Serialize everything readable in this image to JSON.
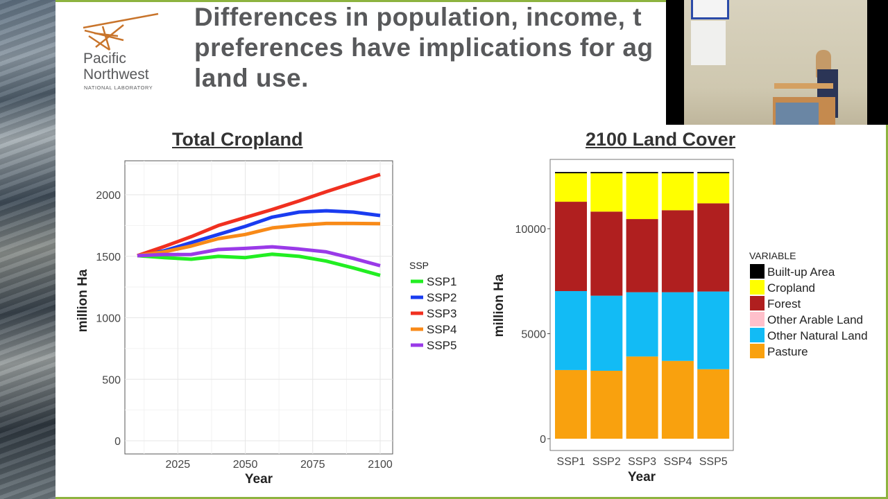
{
  "slide": {
    "title_lines": [
      "Differences in population, income, t",
      "preferences have implications for ag",
      "land use."
    ],
    "logo": {
      "line1": "Pacific",
      "line2": "Northwest",
      "line3": "NATIONAL LABORATORY"
    },
    "accent_color": "#8db33f"
  },
  "chart_data": [
    {
      "type": "line",
      "title": "Total Cropland",
      "xlabel": "Year",
      "ylabel": "million Ha",
      "xlim": [
        2010,
        2100
      ],
      "ylim": [
        0,
        2250
      ],
      "xticks": [
        2025,
        2050,
        2075,
        2100
      ],
      "yticks": [
        0,
        500,
        1000,
        1500,
        2000
      ],
      "grid": true,
      "legend_title": "SSP",
      "legend_position": "right",
      "x": [
        2010,
        2020,
        2030,
        2040,
        2050,
        2060,
        2070,
        2080,
        2090,
        2100
      ],
      "series": [
        {
          "name": "SSP1",
          "color": "#22ee22",
          "values": [
            1505,
            1489,
            1476,
            1499,
            1489,
            1517,
            1499,
            1461,
            1405,
            1345
          ]
        },
        {
          "name": "SSP2",
          "color": "#1a3cf0",
          "values": [
            1505,
            1545,
            1611,
            1677,
            1743,
            1818,
            1859,
            1870,
            1859,
            1831
          ]
        },
        {
          "name": "SSP3",
          "color": "#f03020",
          "values": [
            1505,
            1580,
            1660,
            1750,
            1815,
            1880,
            1950,
            2025,
            2095,
            2165
          ]
        },
        {
          "name": "SSP4",
          "color": "#f88a18",
          "values": [
            1505,
            1536,
            1583,
            1643,
            1677,
            1730,
            1752,
            1767,
            1767,
            1765
          ]
        },
        {
          "name": "SSP5",
          "color": "#9a3ae8",
          "values": [
            1505,
            1514,
            1515,
            1555,
            1564,
            1577,
            1559,
            1536,
            1483,
            1423
          ]
        }
      ]
    },
    {
      "type": "bar",
      "stacked": true,
      "title": "2100 Land Cover",
      "xlabel": "Year",
      "ylabel": "million Ha",
      "ylim": [
        0,
        13200
      ],
      "yticks": [
        0,
        5000,
        10000
      ],
      "categories": [
        "SSP1",
        "SSP2",
        "SSP3",
        "SSP4",
        "SSP5"
      ],
      "legend_title": "VARIABLE",
      "legend_position": "right",
      "series": [
        {
          "name": "Pasture",
          "color": "#f9a10e",
          "values": [
            3270,
            3235,
            3915,
            3705,
            3310
          ]
        },
        {
          "name": "Other Natural Land",
          "color": "#12bbf5",
          "values": [
            3760,
            3575,
            3060,
            3270,
            3700
          ]
        },
        {
          "name": "Other Arable Land",
          "color": "#ffc0cb",
          "values": [
            0,
            0,
            0,
            0,
            0
          ]
        },
        {
          "name": "Forest",
          "color": "#b01f1f",
          "values": [
            4255,
            4005,
            3485,
            3905,
            4200
          ]
        },
        {
          "name": "Cropland",
          "color": "#ffff00",
          "values": [
            1355,
            1825,
            2180,
            1760,
            1430
          ]
        },
        {
          "name": "Built-up Area",
          "color": "#000000",
          "values": [
            60,
            60,
            60,
            60,
            60
          ]
        }
      ],
      "legend_order": [
        "Built-up Area",
        "Cropland",
        "Forest",
        "Other Arable Land",
        "Other Natural Land",
        "Pasture"
      ]
    }
  ]
}
